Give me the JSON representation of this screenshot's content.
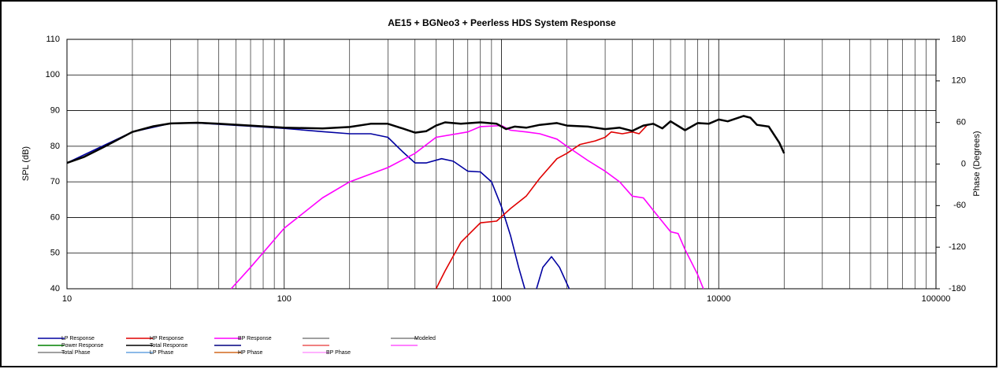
{
  "chart_data": {
    "type": "line",
    "title": "AE15 + BGNeo3 + Peerless HDS  System Response",
    "y_label": "SPL (dB)",
    "y2_label": "Phase (Degrees)",
    "log_x": true,
    "grid": true,
    "xlim": [
      10,
      100000
    ],
    "xticks": [
      10,
      100,
      1000,
      10000,
      100000
    ],
    "ylim": [
      40,
      110
    ],
    "yticks": [
      40,
      50,
      60,
      70,
      80,
      90,
      100,
      110
    ],
    "y2lim": [
      -180,
      180
    ],
    "y2ticks": [
      -180,
      -120,
      -60,
      0,
      60,
      120,
      180
    ],
    "series": [
      {
        "name": "LP Response",
        "color": "#0000a0",
        "x": [
          10,
          20,
          30,
          40,
          70,
          100,
          150,
          200,
          250,
          300,
          350,
          400,
          450,
          530,
          600,
          700,
          800,
          900,
          1000,
          1100,
          1200,
          1280,
          null,
          1450,
          1550,
          1700,
          1850,
          2050
        ],
        "values": [
          75.3,
          84,
          86.4,
          86.5,
          85.6,
          85,
          84.1,
          83.5,
          83.5,
          82.5,
          78.5,
          75.3,
          75.3,
          76.5,
          75.8,
          73,
          72.8,
          70,
          63,
          55,
          46,
          40,
          null,
          40,
          46,
          49,
          46,
          40
        ]
      },
      {
        "name": "HP Response",
        "color": "#e00000",
        "x": [
          500,
          550,
          650,
          800,
          950,
          1100,
          1300,
          1500,
          1800,
          2000,
          2300,
          2700,
          3000,
          3200,
          3600,
          4000,
          4300,
          4700,
          5000,
          5500
        ],
        "values": [
          40,
          45,
          53,
          58.5,
          59,
          62.5,
          66,
          71,
          76.5,
          78,
          80.5,
          81.5,
          82.5,
          84,
          83.5,
          84,
          83.5,
          86,
          86.3,
          85
        ]
      },
      {
        "name": "BP Response",
        "color": "#ff00ff",
        "x": [
          57,
          70,
          100,
          150,
          200,
          300,
          400,
          500,
          700,
          800,
          1000,
          1100,
          1300,
          1500,
          1800,
          2000,
          2500,
          3000,
          3500,
          4000,
          4500,
          5000,
          6000,
          6500,
          7000,
          8000,
          8500
        ],
        "values": [
          40,
          46,
          57,
          65.5,
          70,
          74,
          78,
          82.5,
          84,
          85.5,
          85.8,
          84.5,
          84,
          83.5,
          82,
          80,
          76,
          73,
          70,
          66,
          65.5,
          62,
          56,
          55.5,
          51,
          44,
          40
        ]
      },
      {
        "name": "Modeled",
        "color": "#808080",
        "x": [],
        "values": []
      },
      {
        "name": "Power Response",
        "color": "#008000",
        "x": [],
        "values": []
      },
      {
        "name": "Total Response",
        "color": "#000000",
        "x": [
          10,
          12,
          15,
          20,
          25,
          30,
          40,
          50,
          70,
          100,
          150,
          200,
          250,
          300,
          350,
          400,
          450,
          500,
          550,
          650,
          800,
          950,
          1050,
          1150,
          1300,
          1500,
          1800,
          2000,
          2500,
          3000,
          3500,
          4000,
          4500,
          5000,
          5500,
          6000,
          7000,
          8000,
          9000,
          10000,
          11000,
          13000,
          14000,
          15000,
          17000,
          19000,
          20000
        ],
        "values": [
          75.3,
          77,
          80,
          84,
          85.6,
          86.4,
          86.6,
          86.3,
          85.8,
          85.2,
          85,
          85.4,
          86.3,
          86.3,
          85,
          83.8,
          84.2,
          85.8,
          86.7,
          86.3,
          86.7,
          86.3,
          84.8,
          85.5,
          85.2,
          86,
          86.5,
          85.8,
          85.5,
          84.8,
          85.2,
          84.3,
          85.8,
          86.3,
          85,
          87,
          84.5,
          86.5,
          86.3,
          87.5,
          87,
          88.5,
          88,
          86,
          85.5,
          81,
          78
        ]
      },
      {
        "name": "Total Phase",
        "color": "#808080",
        "axis": "y2",
        "x": [],
        "values": []
      },
      {
        "name": "LP Phase",
        "color": "#66a3e0",
        "axis": "y2",
        "x": [],
        "values": []
      },
      {
        "name": "HP Phase",
        "color": "#d2691e",
        "axis": "y2",
        "x": [],
        "values": []
      },
      {
        "name": "BP Phase",
        "color": "#ff99ff",
        "axis": "y2",
        "x": [],
        "values": []
      }
    ]
  }
}
